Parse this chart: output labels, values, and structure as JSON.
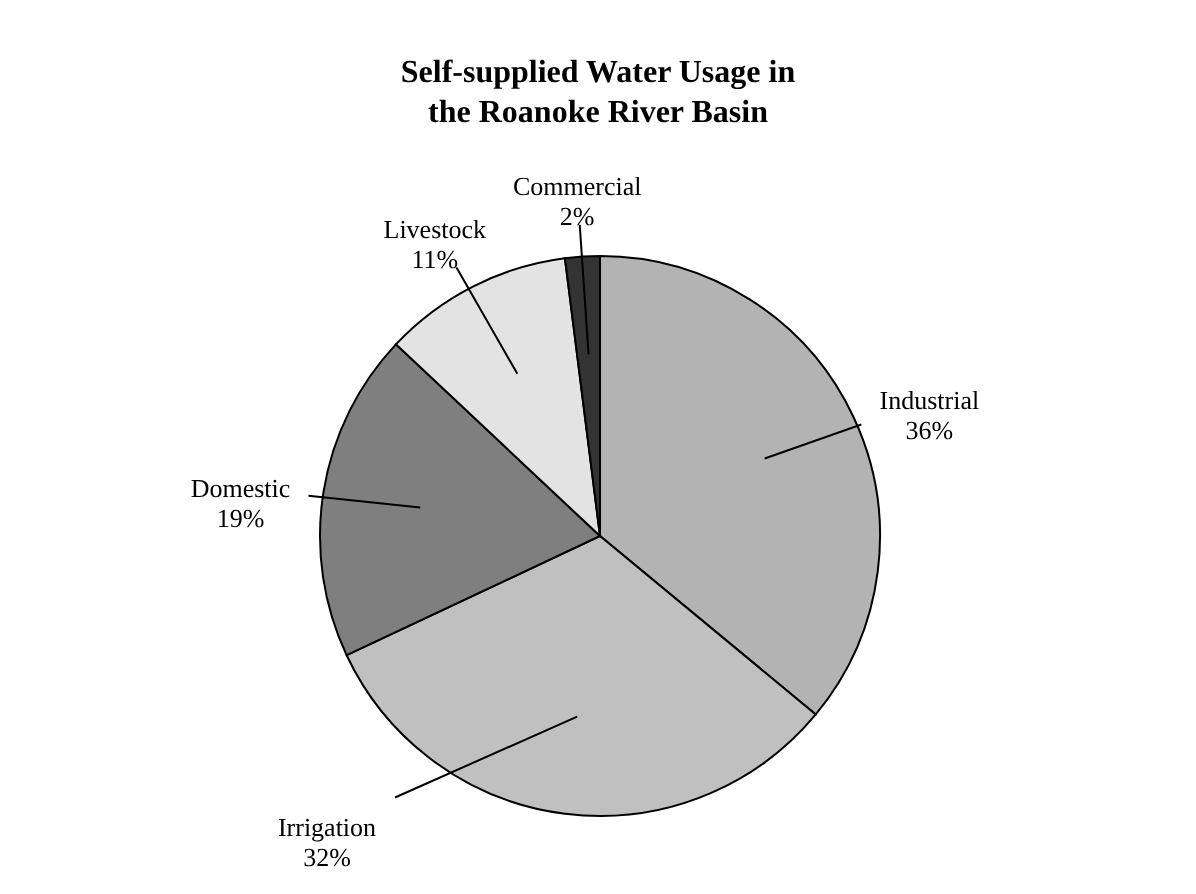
{
  "chart_data": {
    "type": "pie",
    "title": "Self-supplied Water Usage in the Roanoke River Basin",
    "categories": [
      "Industrial",
      "Irrigation",
      "Domestic",
      "Livestock",
      "Commercial"
    ],
    "values": [
      36,
      32,
      19,
      11,
      2
    ],
    "value_labels": [
      "36%",
      "32%",
      "19%",
      "11%",
      "2%"
    ],
    "colors": [
      "#b3b3b3",
      "#c0c0c0",
      "#7f7f7f",
      "#e3e3e3",
      "#333333"
    ]
  }
}
